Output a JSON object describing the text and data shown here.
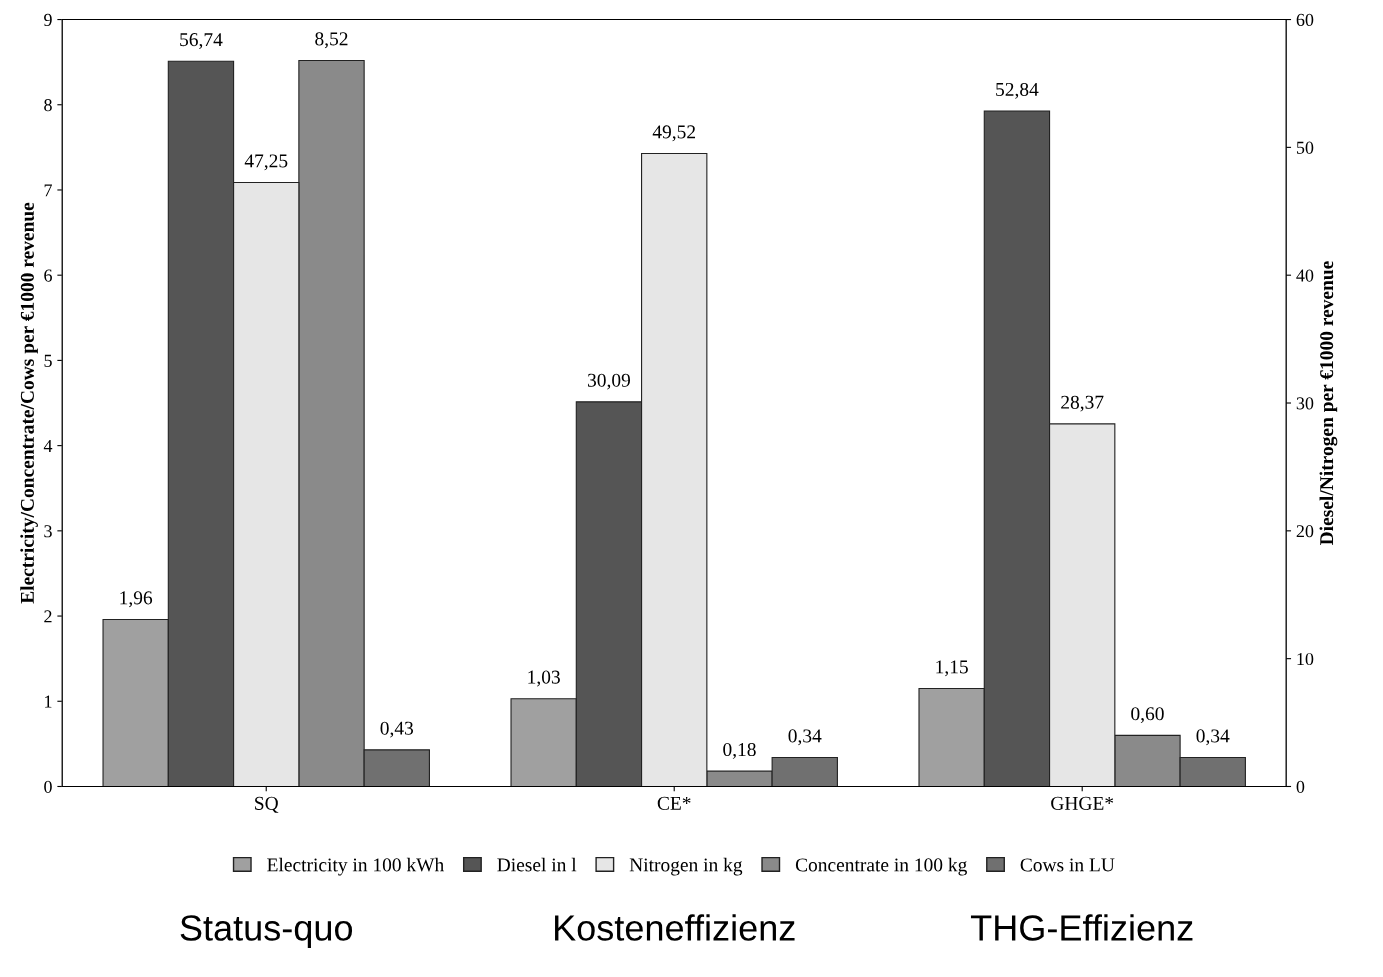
{
  "chart_data": {
    "type": "bar",
    "categories": [
      "SQ",
      "CE*",
      "GHGE*"
    ],
    "ylabel": "Electricity/Concentrate/Cows per €1000 revenue",
    "y2label": "Diesel/Nitrogen per €1000 revenue",
    "ylim": [
      0,
      9
    ],
    "yticks": [
      0,
      1,
      2,
      3,
      4,
      5,
      6,
      7,
      8,
      9
    ],
    "y2lim": [
      0,
      60
    ],
    "y2ticks": [
      0,
      10,
      20,
      30,
      40,
      50,
      60
    ],
    "legend": "bottom",
    "grid": false,
    "series": [
      {
        "name": "Electricity in 100 kWh",
        "color": "#a0a0a0",
        "values": [
          1.96,
          1.03,
          1.15
        ],
        "value_labels": [
          "1,96",
          "1,03",
          "1,15"
        ]
      },
      {
        "name": "Diesel in l",
        "color": "#555555",
        "axis": "y2",
        "values": [
          56.74,
          30.09,
          52.84
        ],
        "value_labels": [
          "56,74",
          "30,09",
          "52,84"
        ]
      },
      {
        "name": "Nitrogen in kg",
        "color": "#e6e6e6",
        "axis": "y2",
        "values": [
          47.25,
          49.52,
          28.37
        ],
        "value_labels": [
          "47,25",
          "49,52",
          "28,37"
        ]
      },
      {
        "name": "Concentrate in 100 kg",
        "color": "#8a8a8a",
        "values": [
          8.52,
          0.18,
          0.6
        ],
        "value_labels": [
          "8,52",
          "0,18",
          "0,60"
        ]
      },
      {
        "name": "Cows in LU",
        "color": "#707070",
        "values": [
          0.43,
          0.34,
          0.34
        ],
        "value_labels": [
          "0,43",
          "0,34",
          "0,34"
        ]
      }
    ],
    "annotations": [
      "Status-quo",
      "Kosteneffizienz",
      "THG-Effizienz"
    ]
  }
}
